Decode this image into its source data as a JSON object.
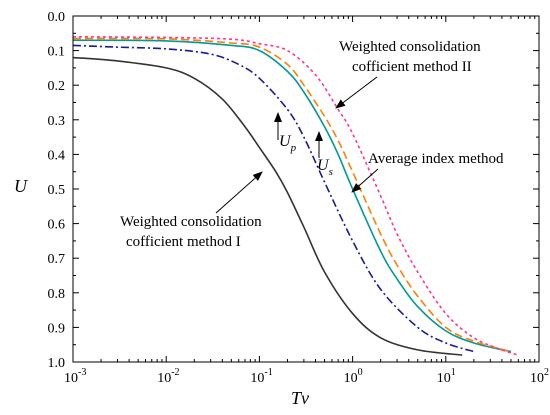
{
  "chart_data": {
    "type": "line",
    "xlabel": "Tv",
    "ylabel": "U",
    "x_scale": "log",
    "xlim": [
      0.001,
      100
    ],
    "ylim": [
      0.0,
      1.0
    ],
    "y_inverted": true,
    "grid": false,
    "xticks": [
      {
        "value": 0.001,
        "base": "10",
        "exp": "-3"
      },
      {
        "value": 0.01,
        "base": "10",
        "exp": "-2"
      },
      {
        "value": 0.1,
        "base": "10",
        "exp": "-1"
      },
      {
        "value": 1,
        "base": "10",
        "exp": "0"
      },
      {
        "value": 10,
        "base": "10",
        "exp": "1"
      },
      {
        "value": 100,
        "base": "10",
        "exp": "2"
      }
    ],
    "yticks": [
      "0.0",
      "0.1",
      "0.2",
      "0.3",
      "0.4",
      "0.5",
      "0.6",
      "0.7",
      "0.8",
      "0.9",
      "1.0"
    ],
    "series": [
      {
        "color": "#333333",
        "style": "solid",
        "x": [
          0.001,
          0.003,
          0.01,
          0.02,
          0.04,
          0.07,
          0.1,
          0.15,
          0.2,
          0.3,
          0.5,
          1,
          2,
          5,
          15
        ],
        "y": [
          0.12,
          0.13,
          0.15,
          0.18,
          0.24,
          0.32,
          0.38,
          0.45,
          0.51,
          0.61,
          0.74,
          0.86,
          0.93,
          0.965,
          0.98
        ]
      },
      {
        "color": "#1a1a99",
        "style": "dashdot",
        "x": [
          0.001,
          0.003,
          0.01,
          0.03,
          0.06,
          0.1,
          0.2,
          0.3,
          0.5,
          1,
          2,
          5,
          10,
          20
        ],
        "y": [
          0.085,
          0.09,
          0.095,
          0.11,
          0.14,
          0.18,
          0.27,
          0.35,
          0.48,
          0.65,
          0.79,
          0.9,
          0.945,
          0.97
        ]
      },
      {
        "color": "#009999",
        "style": "solid",
        "x": [
          0.001,
          0.01,
          0.05,
          0.1,
          0.2,
          0.3,
          0.5,
          0.7,
          1,
          2,
          3,
          5,
          10,
          20,
          50
        ],
        "y": [
          0.07,
          0.072,
          0.085,
          0.1,
          0.16,
          0.22,
          0.32,
          0.4,
          0.5,
          0.68,
          0.76,
          0.84,
          0.91,
          0.945,
          0.97
        ]
      },
      {
        "color": "#ff8000",
        "style": "dash",
        "x": [
          0.001,
          0.01,
          0.05,
          0.1,
          0.2,
          0.3,
          0.5,
          0.7,
          1,
          2,
          3,
          5,
          10,
          20,
          50
        ],
        "y": [
          0.065,
          0.066,
          0.078,
          0.09,
          0.14,
          0.2,
          0.29,
          0.36,
          0.45,
          0.63,
          0.72,
          0.81,
          0.9,
          0.94,
          0.97
        ]
      },
      {
        "color": "#ff3399",
        "style": "dot",
        "x": [
          0.001,
          0.01,
          0.05,
          0.1,
          0.2,
          0.4,
          0.7,
          1,
          2,
          3,
          5,
          10,
          20,
          40,
          60
        ],
        "y": [
          0.06,
          0.062,
          0.067,
          0.08,
          0.1,
          0.17,
          0.27,
          0.34,
          0.52,
          0.63,
          0.74,
          0.86,
          0.93,
          0.965,
          0.98
        ]
      }
    ],
    "annotations": {
      "method2_line1": "Weighted consolidation",
      "method2_line2": "cofficient method II",
      "avg_index": "Average index method",
      "method1_line1": "Weighted consolidation",
      "method1_line2": "cofficient method I",
      "up_main": "U",
      "up_sub": "p",
      "us_main": "U",
      "us_sub": "s"
    }
  }
}
